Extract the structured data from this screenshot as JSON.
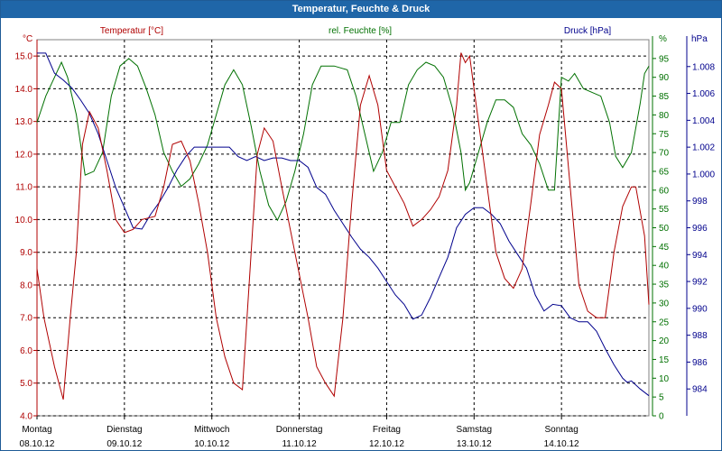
{
  "window": {
    "title": "Temperatur, Feuchte & Druck"
  },
  "colors": {
    "temperature": "#b00000",
    "humidity": "#007000",
    "pressure": "#00008c",
    "grid": "#000000",
    "title_bar": "#1f66a8"
  },
  "chart_data": {
    "type": "line",
    "title": "Temperatur, Feuchte & Druck",
    "grid": true,
    "x_range": [
      0,
      7
    ],
    "x_ticks": [
      {
        "day": "Montag",
        "date": "08.10.12"
      },
      {
        "day": "Dienstag",
        "date": "09.10.12"
      },
      {
        "day": "Mittwoch",
        "date": "10.10.12"
      },
      {
        "day": "Donnerstag",
        "date": "11.10.12"
      },
      {
        "day": "Freitag",
        "date": "12.10.12"
      },
      {
        "day": "Samstag",
        "date": "13.10.12"
      },
      {
        "day": "Sonntag",
        "date": "14.10.12"
      }
    ],
    "axes": {
      "temperature": {
        "unit": "°C",
        "label": "Temperatur [°C]",
        "range": [
          4.0,
          15.5
        ],
        "ticks": [
          "4.0",
          "5.0",
          "6.0",
          "7.0",
          "8.0",
          "9.0",
          "10.0",
          "11.0",
          "12.0",
          "13.0",
          "14.0",
          "15.0"
        ]
      },
      "humidity": {
        "unit": "%",
        "label": "rel. Feuchte [%]",
        "range": [
          0,
          100
        ],
        "ticks": [
          "0",
          "5",
          "10",
          "15",
          "20",
          "25",
          "30",
          "35",
          "40",
          "45",
          "50",
          "55",
          "60",
          "65",
          "70",
          "75",
          "80",
          "85",
          "90",
          "95"
        ]
      },
      "pressure": {
        "unit": "hPa",
        "label": "Druck [hPa]",
        "range": [
          982,
          1010
        ],
        "ticks": [
          "984",
          "986",
          "988",
          "990",
          "992",
          "994",
          "996",
          "998",
          "1.000",
          "1.002",
          "1.004",
          "1.006",
          "1.008"
        ]
      }
    },
    "series": [
      {
        "name": "Temperatur [°C]",
        "axis": "temperature",
        "points": [
          [
            0,
            8.5
          ],
          [
            0.08,
            7.0
          ],
          [
            0.2,
            5.5
          ],
          [
            0.3,
            4.5
          ],
          [
            0.38,
            7.0
          ],
          [
            0.45,
            9.0
          ],
          [
            0.52,
            12.3
          ],
          [
            0.6,
            13.3
          ],
          [
            0.7,
            12.8
          ],
          [
            0.8,
            11.5
          ],
          [
            0.9,
            10.0
          ],
          [
            1.0,
            9.6
          ],
          [
            1.1,
            9.7
          ],
          [
            1.2,
            10.0
          ],
          [
            1.35,
            10.1
          ],
          [
            1.45,
            11.0
          ],
          [
            1.55,
            12.3
          ],
          [
            1.65,
            12.4
          ],
          [
            1.75,
            11.8
          ],
          [
            1.85,
            10.5
          ],
          [
            1.95,
            9.0
          ],
          [
            2.05,
            7.0
          ],
          [
            2.15,
            5.8
          ],
          [
            2.25,
            5.0
          ],
          [
            2.35,
            4.8
          ],
          [
            2.45,
            9.0
          ],
          [
            2.52,
            12.0
          ],
          [
            2.6,
            12.8
          ],
          [
            2.7,
            12.4
          ],
          [
            2.8,
            11.0
          ],
          [
            2.95,
            9.0
          ],
          [
            3.1,
            7.0
          ],
          [
            3.2,
            5.5
          ],
          [
            3.3,
            5.0
          ],
          [
            3.4,
            4.6
          ],
          [
            3.5,
            7.0
          ],
          [
            3.6,
            10.5
          ],
          [
            3.7,
            13.5
          ],
          [
            3.8,
            14.4
          ],
          [
            3.9,
            13.5
          ],
          [
            4.0,
            11.5
          ],
          [
            4.1,
            11.0
          ],
          [
            4.2,
            10.5
          ],
          [
            4.3,
            9.8
          ],
          [
            4.4,
            10.0
          ],
          [
            4.5,
            10.3
          ],
          [
            4.6,
            10.7
          ],
          [
            4.7,
            11.5
          ],
          [
            4.8,
            13.5
          ],
          [
            4.85,
            15.1
          ],
          [
            4.9,
            14.8
          ],
          [
            4.95,
            15.0
          ],
          [
            5.05,
            13.0
          ],
          [
            5.15,
            11.0
          ],
          [
            5.25,
            9.0
          ],
          [
            5.35,
            8.2
          ],
          [
            5.45,
            7.9
          ],
          [
            5.55,
            8.5
          ],
          [
            5.65,
            10.5
          ],
          [
            5.75,
            12.6
          ],
          [
            5.85,
            13.5
          ],
          [
            5.92,
            14.2
          ],
          [
            6.0,
            14.0
          ],
          [
            6.1,
            11.0
          ],
          [
            6.2,
            8.0
          ],
          [
            6.3,
            7.2
          ],
          [
            6.4,
            7.0
          ],
          [
            6.5,
            7.0
          ],
          [
            6.6,
            9.0
          ],
          [
            6.7,
            10.4
          ],
          [
            6.8,
            11.0
          ],
          [
            6.85,
            11.0
          ],
          [
            6.95,
            9.5
          ],
          [
            7.0,
            7.4
          ]
        ]
      },
      {
        "name": "rel. Feuchte [%]",
        "axis": "humidity",
        "points": [
          [
            0,
            78
          ],
          [
            0.1,
            85
          ],
          [
            0.2,
            90
          ],
          [
            0.28,
            94
          ],
          [
            0.35,
            90
          ],
          [
            0.45,
            80
          ],
          [
            0.55,
            64
          ],
          [
            0.65,
            65
          ],
          [
            0.75,
            70
          ],
          [
            0.85,
            85
          ],
          [
            0.95,
            93
          ],
          [
            1.05,
            95
          ],
          [
            1.15,
            93
          ],
          [
            1.25,
            87
          ],
          [
            1.35,
            80
          ],
          [
            1.45,
            70
          ],
          [
            1.55,
            65
          ],
          [
            1.65,
            61
          ],
          [
            1.75,
            63
          ],
          [
            1.85,
            67
          ],
          [
            1.95,
            72
          ],
          [
            2.05,
            80
          ],
          [
            2.15,
            88
          ],
          [
            2.25,
            92
          ],
          [
            2.35,
            88
          ],
          [
            2.45,
            77
          ],
          [
            2.55,
            65
          ],
          [
            2.65,
            56
          ],
          [
            2.75,
            52
          ],
          [
            2.85,
            57
          ],
          [
            2.95,
            65
          ],
          [
            3.05,
            75
          ],
          [
            3.15,
            88
          ],
          [
            3.25,
            93
          ],
          [
            3.4,
            93
          ],
          [
            3.55,
            92
          ],
          [
            3.65,
            85
          ],
          [
            3.75,
            75
          ],
          [
            3.85,
            65
          ],
          [
            3.95,
            70
          ],
          [
            4.05,
            78
          ],
          [
            4.15,
            78
          ],
          [
            4.25,
            88
          ],
          [
            4.35,
            92
          ],
          [
            4.45,
            94
          ],
          [
            4.55,
            93
          ],
          [
            4.65,
            90
          ],
          [
            4.75,
            82
          ],
          [
            4.85,
            70
          ],
          [
            4.9,
            60
          ],
          [
            4.95,
            62
          ],
          [
            5.05,
            70
          ],
          [
            5.15,
            78
          ],
          [
            5.25,
            84
          ],
          [
            5.35,
            84
          ],
          [
            5.45,
            82
          ],
          [
            5.55,
            75
          ],
          [
            5.65,
            72
          ],
          [
            5.75,
            67
          ],
          [
            5.85,
            60
          ],
          [
            5.92,
            60
          ],
          [
            6.0,
            90
          ],
          [
            6.08,
            89
          ],
          [
            6.15,
            91
          ],
          [
            6.25,
            87
          ],
          [
            6.35,
            86
          ],
          [
            6.45,
            85
          ],
          [
            6.55,
            78
          ],
          [
            6.62,
            69
          ],
          [
            6.7,
            66
          ],
          [
            6.8,
            70
          ],
          [
            6.9,
            83
          ],
          [
            6.95,
            91
          ],
          [
            7.0,
            93
          ]
        ]
      },
      {
        "name": "Druck [hPa]",
        "axis": "pressure",
        "points": [
          [
            0,
            1009.0
          ],
          [
            0.1,
            1009.0
          ],
          [
            0.2,
            1007.5
          ],
          [
            0.3,
            1007.0
          ],
          [
            0.4,
            1006.4
          ],
          [
            0.5,
            1005.5
          ],
          [
            0.6,
            1004.5
          ],
          [
            0.7,
            1003.0
          ],
          [
            0.8,
            1001.0
          ],
          [
            0.9,
            999.0
          ],
          [
            1.0,
            997.5
          ],
          [
            1.1,
            996.0
          ],
          [
            1.2,
            995.9
          ],
          [
            1.3,
            997.0
          ],
          [
            1.4,
            997.9
          ],
          [
            1.5,
            999.0
          ],
          [
            1.6,
            1000.3
          ],
          [
            1.7,
            1001.3
          ],
          [
            1.8,
            1002.0
          ],
          [
            1.9,
            1002.0
          ],
          [
            2.0,
            1002.0
          ],
          [
            2.1,
            1002.0
          ],
          [
            2.2,
            1002.0
          ],
          [
            2.3,
            1001.3
          ],
          [
            2.4,
            1001.0
          ],
          [
            2.5,
            1001.3
          ],
          [
            2.6,
            1001.0
          ],
          [
            2.7,
            1001.2
          ],
          [
            2.8,
            1001.2
          ],
          [
            2.9,
            1001.0
          ],
          [
            3.0,
            1001.0
          ],
          [
            3.1,
            1000.5
          ],
          [
            3.2,
            999.0
          ],
          [
            3.3,
            998.5
          ],
          [
            3.4,
            997.3
          ],
          [
            3.5,
            996.3
          ],
          [
            3.6,
            995.3
          ],
          [
            3.7,
            994.4
          ],
          [
            3.8,
            993.8
          ],
          [
            3.9,
            993.0
          ],
          [
            4.0,
            992.0
          ],
          [
            4.1,
            991.0
          ],
          [
            4.2,
            990.3
          ],
          [
            4.3,
            989.2
          ],
          [
            4.4,
            989.5
          ],
          [
            4.5,
            990.8
          ],
          [
            4.6,
            992.3
          ],
          [
            4.7,
            993.8
          ],
          [
            4.8,
            996.0
          ],
          [
            4.9,
            997.0
          ],
          [
            5.0,
            997.5
          ],
          [
            5.1,
            997.5
          ],
          [
            5.2,
            997.0
          ],
          [
            5.3,
            996.3
          ],
          [
            5.4,
            995.0
          ],
          [
            5.5,
            994.0
          ],
          [
            5.6,
            993.0
          ],
          [
            5.7,
            991.0
          ],
          [
            5.8,
            989.8
          ],
          [
            5.9,
            990.3
          ],
          [
            6.0,
            990.2
          ],
          [
            6.1,
            989.3
          ],
          [
            6.2,
            989.0
          ],
          [
            6.3,
            989.0
          ],
          [
            6.4,
            988.3
          ],
          [
            6.5,
            987.0
          ],
          [
            6.6,
            985.8
          ],
          [
            6.7,
            984.8
          ],
          [
            6.75,
            984.5
          ],
          [
            6.8,
            984.6
          ],
          [
            6.9,
            984.0
          ],
          [
            7.0,
            983.5
          ]
        ]
      }
    ]
  }
}
